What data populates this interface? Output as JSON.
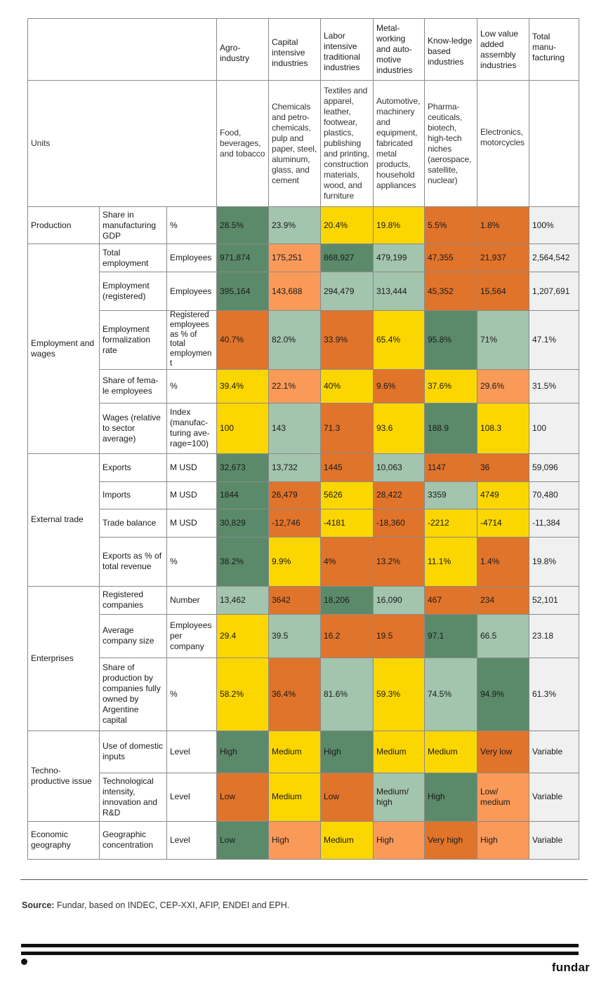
{
  "columns": [
    {
      "name": "Agro-\nindustry",
      "desc": "Food, beverages, and tobacco"
    },
    {
      "name": "Capital intensive industries",
      "desc": "Chemicals and petro-chemicals, pulp and paper, steel, aluminum, glass, and cement"
    },
    {
      "name": "Labor intensive traditional industries",
      "desc": "Textiles and apparel, leather, footwear, plastics, publishing and printing, construction materials, wood, and furniture"
    },
    {
      "name": "Metal-working and auto-motive industries",
      "desc": "Automotive, machinery and equipment, fabricated metal products, household appliances"
    },
    {
      "name": "Know-ledge based industries",
      "desc": "Pharma-ceuticals, biotech, high-tech niches (aerospace, satellite, nuclear)"
    },
    {
      "name": "Low value added assembly industries",
      "desc": "Electronics, motorcycles"
    },
    {
      "name": "Total manu-facturing",
      "desc": ""
    }
  ],
  "units_label": "Units",
  "sections": {
    "production": "Production",
    "employment": "Employment and wages",
    "trade": "External trade",
    "enterprises": "Enterprises",
    "techno": "Techno-productive issue",
    "geo": "Economic geography"
  },
  "rows": [
    {
      "indicator": "Share in manufacturing GDP",
      "unit": "%",
      "values": [
        "28.5%",
        "23.9%",
        "20.4%",
        "19.8%",
        "5.5%",
        "1.8%"
      ],
      "total": "100%"
    },
    {
      "indicator": "Total employment",
      "unit": "Employees",
      "values": [
        "971,874",
        "175,251",
        "868,927",
        "479,199",
        "47,355",
        "21,937"
      ],
      "total": "2,564,542"
    },
    {
      "indicator": "Employment (registered)",
      "unit": "Employees",
      "values": [
        "395,164",
        "143,688",
        "294,479",
        "313,444",
        "45,352",
        "15,564"
      ],
      "total": "1,207,691"
    },
    {
      "indicator": "Employment formalization rate",
      "unit": "Registered employees as % of total employment",
      "values": [
        "40.7%",
        "82.0%",
        "33.9%",
        "65.4%",
        "95.8%",
        "71%"
      ],
      "total": "47.1%"
    },
    {
      "indicator": "Share of fema-le employees",
      "unit": "%",
      "values": [
        "39.4%",
        "22.1%",
        "40%",
        "9.6%",
        "37.6%",
        "29.6%"
      ],
      "total": "31.5%"
    },
    {
      "indicator": "Wages (relative to sector average)",
      "unit": "Index (manufac-turing ave-rage=100)",
      "values": [
        "100",
        "143",
        "71.3",
        "93.6",
        "188.9",
        "108.3"
      ],
      "total": "100"
    },
    {
      "indicator": "Exports",
      "unit": "M USD",
      "values": [
        "32,673",
        "13,732",
        "1445",
        "10,063",
        "1147",
        "36"
      ],
      "total": "59,096"
    },
    {
      "indicator": "Imports",
      "unit": "M USD",
      "values": [
        "1844",
        "26,479",
        "5626",
        "28,422",
        "3359",
        "4749"
      ],
      "total": "70,480"
    },
    {
      "indicator": "Trade balance",
      "unit": "M USD",
      "values": [
        "30,829",
        "-12,746",
        "-4181",
        "-18,360",
        "-2212",
        "-4714"
      ],
      "total": "-11,384"
    },
    {
      "indicator": "Exports as % of total revenue",
      "unit": "%",
      "values": [
        "38.2%",
        "9.9%",
        "4%",
        "13.2%",
        "11.1%",
        "1.4%"
      ],
      "total": "19.8%"
    },
    {
      "indicator": "Registered companies",
      "unit": "Number",
      "values": [
        "13,462",
        "3642",
        "18,206",
        "16,090",
        "467",
        "234"
      ],
      "total": "52,101"
    },
    {
      "indicator": "Average company size",
      "unit": "Employees per company",
      "values": [
        "29.4",
        "39.5",
        "16.2",
        "19.5",
        "97.1",
        "66.5"
      ],
      "total": "23.18"
    },
    {
      "indicator": "Share of production by companies fully owned by Argentine capital",
      "unit": "%",
      "values": [
        "58.2%",
        "36.4%",
        "81.6%",
        "59.3%",
        "74.5%",
        "94.9%"
      ],
      "total": "61.3%"
    },
    {
      "indicator": "Use of domestic inputs",
      "unit": "Level",
      "values": [
        "High",
        "Medium",
        "High",
        "Medium",
        "Medium",
        "Very low"
      ],
      "total": "Variable"
    },
    {
      "indicator": "Technological intensity, innovation and R&D",
      "unit": "Level",
      "values": [
        "Low",
        "Medium",
        "Low",
        "Medium/ high",
        "High",
        "Low/ medium"
      ],
      "total": "Variable"
    },
    {
      "indicator": "Geographic concentration",
      "unit": "Level",
      "values": [
        "Low",
        "High",
        "Medium",
        "High",
        "Very high",
        "High"
      ],
      "total": "Variable"
    }
  ],
  "colors": {
    "dark_green": "#5b8a6a",
    "light_green": "#a3c4ad",
    "yellow": "#fcd600",
    "dark_orange": "#e1742b",
    "light_orange": "#fa9a59"
  },
  "source_label": "Source:",
  "source_text": " Fundar, based on INDEC, CEP-XXI, AFIP, ENDEI and EPH.",
  "logo": "fundar"
}
